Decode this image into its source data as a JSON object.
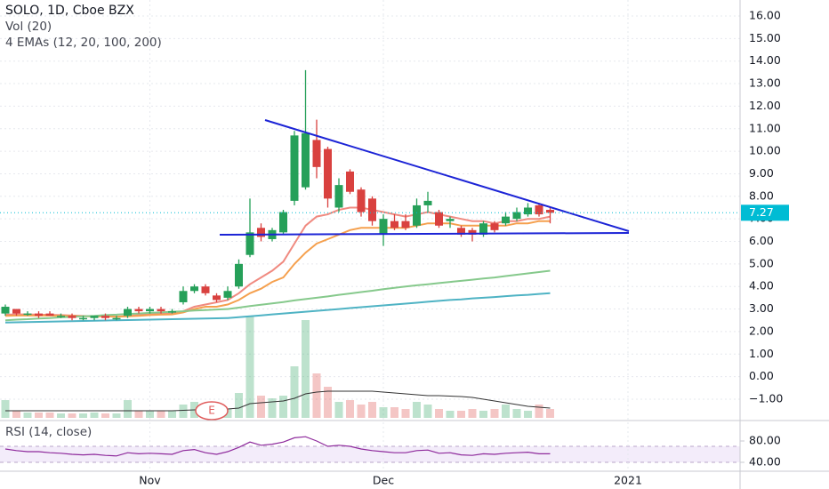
{
  "chart_data": {
    "type": "candlestick",
    "title": "SOLO, 1D, Cboe BZX",
    "categories": [
      null,
      null,
      null,
      null,
      null,
      null,
      null,
      null,
      null,
      null,
      null,
      null,
      null,
      "Nov",
      null,
      null,
      null,
      null,
      null,
      null,
      null,
      null,
      null,
      null,
      null,
      null,
      null,
      null,
      null,
      null,
      null,
      null,
      null,
      null,
      "Dec",
      null,
      null,
      null,
      null,
      null,
      null,
      null,
      null,
      null,
      null,
      null,
      null,
      null,
      null,
      null,
      null,
      null,
      null,
      null,
      null,
      null,
      "2021",
      null,
      null,
      null,
      null,
      null,
      null,
      null,
      null,
      null
    ],
    "open": [
      2.8,
      3.0,
      2.8,
      2.8,
      2.8,
      2.7,
      2.7,
      2.6,
      2.6,
      2.7,
      2.6,
      2.7,
      3.0,
      2.9,
      3.0,
      2.9,
      3.3,
      3.8,
      4.0,
      3.6,
      3.5,
      4.0,
      5.4,
      6.6,
      6.1,
      6.4,
      7.8,
      8.4,
      10.5,
      10.1,
      7.5,
      9.1,
      8.3,
      7.9,
      6.3,
      6.9,
      6.9,
      6.7,
      7.6,
      7.3,
      6.9,
      6.6,
      6.5,
      6.3,
      6.8,
      6.8,
      7.0,
      7.2,
      7.6,
      7.4,
      null,
      null,
      null,
      null,
      null,
      null,
      null,
      null,
      null,
      null,
      null,
      null,
      null,
      null,
      null,
      null
    ],
    "high": [
      3.2,
      3.0,
      2.9,
      2.9,
      2.9,
      2.8,
      2.8,
      2.7,
      2.7,
      2.8,
      2.7,
      3.1,
      3.1,
      3.1,
      3.1,
      3.0,
      4.0,
      4.1,
      4.1,
      3.7,
      4.0,
      5.2,
      7.9,
      6.8,
      6.6,
      7.4,
      10.9,
      13.6,
      11.4,
      10.2,
      8.8,
      9.2,
      8.4,
      8.0,
      7.2,
      7.2,
      7.2,
      7.9,
      8.2,
      7.4,
      7.1,
      6.7,
      6.6,
      6.9,
      6.9,
      7.3,
      7.5,
      7.7,
      7.7,
      7.5,
      null,
      null,
      null,
      null,
      null,
      null,
      null,
      null,
      null,
      null,
      null,
      null,
      null,
      null,
      null,
      null
    ],
    "low": [
      2.7,
      2.7,
      2.7,
      2.6,
      2.7,
      2.6,
      2.5,
      2.5,
      2.5,
      2.5,
      2.5,
      2.6,
      2.8,
      2.8,
      2.8,
      2.8,
      3.2,
      3.7,
      3.6,
      3.3,
      3.4,
      3.9,
      5.3,
      6.0,
      6.0,
      6.3,
      7.6,
      8.3,
      8.8,
      7.5,
      7.3,
      8.1,
      7.1,
      6.7,
      5.8,
      6.5,
      6.5,
      6.6,
      7.3,
      6.6,
      6.6,
      6.2,
      6.0,
      6.2,
      6.4,
      6.7,
      6.9,
      7.1,
      7.1,
      6.8,
      null,
      null,
      null,
      null,
      null,
      null,
      null,
      null,
      null,
      null,
      null,
      null,
      null,
      null,
      null,
      null
    ],
    "close": [
      3.1,
      2.8,
      2.8,
      2.7,
      2.7,
      2.7,
      2.6,
      2.6,
      2.7,
      2.6,
      2.6,
      3.0,
      2.9,
      3.0,
      2.9,
      2.9,
      3.8,
      4.0,
      3.7,
      3.4,
      3.8,
      5.0,
      6.4,
      6.2,
      6.5,
      7.3,
      10.7,
      10.8,
      9.3,
      7.9,
      8.5,
      8.2,
      7.3,
      6.9,
      7.0,
      6.6,
      6.6,
      7.6,
      7.8,
      6.7,
      7.0,
      6.3,
      6.3,
      6.8,
      6.5,
      7.1,
      7.3,
      7.5,
      7.2,
      7.27,
      null,
      null,
      null,
      null,
      null,
      null,
      null,
      null,
      null,
      null,
      null,
      null,
      null,
      null,
      null,
      null
    ],
    "up_color": "#26a059",
    "down_color": "#d9413f",
    "last_price": 7.27,
    "last_price_color": "#00bcd4",
    "ylim": [
      -1.83,
      16.71
    ],
    "yticks": [
      {
        "value": 16,
        "label": "16.00"
      },
      {
        "value": 15,
        "label": "15.00"
      },
      {
        "value": 14,
        "label": "14.00"
      },
      {
        "value": 13,
        "label": "13.00"
      },
      {
        "value": 12,
        "label": "12.00"
      },
      {
        "value": 11,
        "label": "11.00"
      },
      {
        "value": 10,
        "label": "10.00"
      },
      {
        "value": 9,
        "label": "9.00"
      },
      {
        "value": 8,
        "label": "8.00"
      },
      {
        "value": 7,
        "label": "7.00"
      },
      {
        "value": 6,
        "label": "6.00"
      },
      {
        "value": 5,
        "label": "5.00"
      },
      {
        "value": 4,
        "label": "4.00"
      },
      {
        "value": 3,
        "label": "3.00"
      },
      {
        "value": 2,
        "label": "2.00"
      },
      {
        "value": 1,
        "label": "1.00"
      },
      {
        "value": 0,
        "label": "0.00"
      },
      {
        "value": -1,
        "label": "−1.00"
      }
    ],
    "grid": true,
    "earnings_marker": "E",
    "volume": {
      "title": "Vol (20)",
      "values": [
        4,
        1.6,
        1.2,
        1.2,
        1.2,
        1,
        1,
        1,
        1.2,
        1,
        1,
        4,
        1.6,
        1.6,
        1.6,
        1.6,
        3,
        3.6,
        1.6,
        1.6,
        2,
        5.6,
        23,
        5,
        4.4,
        5,
        11.6,
        22,
        10,
        7,
        3.6,
        4,
        3,
        3.6,
        2.4,
        2.4,
        2,
        3.6,
        3,
        2,
        1.6,
        1.6,
        2,
        1.6,
        2,
        3,
        2,
        1.6,
        3,
        2,
        null,
        null,
        null,
        null,
        null,
        null,
        null,
        null,
        null,
        null,
        null,
        null,
        null,
        null,
        null,
        null
      ],
      "ma": [
        1.6,
        1.6,
        1.6,
        1.6,
        1.6,
        1.6,
        1.6,
        1.6,
        1.6,
        1.6,
        1.6,
        1.6,
        1.6,
        1.6,
        1.6,
        1.6,
        1.7,
        1.8,
        1.8,
        1.9,
        2,
        2.2,
        3.2,
        3.4,
        3.6,
        3.8,
        4.4,
        5.4,
        5.8,
        6,
        6,
        6,
        6,
        6,
        5.8,
        5.6,
        5.4,
        5.2,
        5,
        5,
        4.9,
        4.8,
        4.6,
        4.2,
        3.8,
        3.4,
        3,
        2.6,
        2.4,
        2.2,
        null,
        null,
        null,
        null,
        null,
        null,
        null,
        null,
        null,
        null,
        null,
        null,
        null,
        null,
        null,
        null
      ],
      "ma_color": "#333333"
    },
    "ema": {
      "title": "4 EMAs (12, 20, 100, 200)",
      "series": [
        {
          "color": "#f08a80",
          "values": [
            2.75,
            2.76,
            2.76,
            2.75,
            2.74,
            2.73,
            2.71,
            2.69,
            2.68,
            2.67,
            2.66,
            2.7,
            2.73,
            2.77,
            2.79,
            2.8,
            2.9,
            3.1,
            3.2,
            3.3,
            3.4,
            3.7,
            4.1,
            4.4,
            4.7,
            5.1,
            5.9,
            6.7,
            7.1,
            7.2,
            7.4,
            7.5,
            7.5,
            7.4,
            7.3,
            7.2,
            7.1,
            7.2,
            7.3,
            7.2,
            7.1,
            7.0,
            6.9,
            6.9,
            6.8,
            6.9,
            6.9,
            7.0,
            7.0,
            7.1,
            null,
            null,
            null,
            null,
            null,
            null,
            null,
            null,
            null,
            null,
            null,
            null,
            null,
            null,
            null,
            null
          ]
        },
        {
          "color": "#f5a04e",
          "values": [
            2.7,
            2.71,
            2.71,
            2.71,
            2.71,
            2.7,
            2.69,
            2.68,
            2.68,
            2.67,
            2.66,
            2.68,
            2.7,
            2.73,
            2.75,
            2.76,
            2.85,
            3.0,
            3.1,
            3.1,
            3.2,
            3.4,
            3.7,
            3.9,
            4.2,
            4.4,
            5.0,
            5.5,
            5.9,
            6.1,
            6.3,
            6.5,
            6.6,
            6.6,
            6.6,
            6.6,
            6.6,
            6.7,
            6.8,
            6.8,
            6.8,
            6.7,
            6.7,
            6.7,
            6.7,
            6.7,
            6.8,
            6.8,
            6.9,
            6.9,
            null,
            null,
            null,
            null,
            null,
            null,
            null,
            null,
            null,
            null,
            null,
            null,
            null,
            null,
            null,
            null
          ]
        },
        {
          "color": "#86c98c",
          "values": [
            2.5,
            2.53,
            2.55,
            2.58,
            2.6,
            2.63,
            2.65,
            2.68,
            2.7,
            2.73,
            2.75,
            2.78,
            2.8,
            2.83,
            2.85,
            2.88,
            2.9,
            2.93,
            2.95,
            2.98,
            3.0,
            3.06,
            3.13,
            3.19,
            3.25,
            3.31,
            3.38,
            3.44,
            3.5,
            3.56,
            3.63,
            3.69,
            3.75,
            3.81,
            3.88,
            3.94,
            4.0,
            4.05,
            4.1,
            4.15,
            4.2,
            4.25,
            4.3,
            4.35,
            4.4,
            4.46,
            4.52,
            4.58,
            4.64,
            4.7,
            null,
            null,
            null,
            null,
            null,
            null,
            null,
            null,
            null,
            null,
            null,
            null,
            null,
            null,
            null,
            null
          ]
        },
        {
          "color": "#4fb3c4",
          "values": [
            2.4,
            2.41,
            2.42,
            2.43,
            2.44,
            2.45,
            2.46,
            2.47,
            2.48,
            2.49,
            2.5,
            2.51,
            2.52,
            2.53,
            2.54,
            2.55,
            2.56,
            2.57,
            2.58,
            2.59,
            2.6,
            2.64,
            2.68,
            2.72,
            2.76,
            2.8,
            2.84,
            2.88,
            2.92,
            2.96,
            3.0,
            3.04,
            3.08,
            3.12,
            3.16,
            3.2,
            3.24,
            3.28,
            3.32,
            3.36,
            3.4,
            3.43,
            3.47,
            3.5,
            3.53,
            3.57,
            3.6,
            3.63,
            3.67,
            3.7,
            null,
            null,
            null,
            null,
            null,
            null,
            null,
            null,
            null,
            null,
            null,
            null,
            null,
            null,
            null,
            null
          ]
        }
      ]
    },
    "rsi": {
      "title": "RSI (14, close)",
      "color": "#8e2a9c",
      "values": [
        65,
        62,
        60,
        60,
        58,
        57,
        55,
        54,
        55,
        53,
        52,
        58,
        56,
        57,
        56,
        55,
        62,
        64,
        58,
        55,
        60,
        68,
        78,
        72,
        74,
        78,
        86,
        88,
        80,
        70,
        72,
        70,
        65,
        62,
        60,
        58,
        58,
        62,
        63,
        57,
        58,
        54,
        53,
        56,
        55,
        57,
        58,
        59,
        56,
        56,
        null,
        null,
        null,
        null,
        null,
        null,
        null,
        null,
        null,
        null,
        null,
        null,
        null,
        null,
        null,
        null
      ],
      "ylim": [
        23.3,
        110
      ],
      "yticks": [
        {
          "value": 80,
          "label": "80.00"
        },
        {
          "value": 40,
          "label": "40.00"
        }
      ]
    }
  }
}
